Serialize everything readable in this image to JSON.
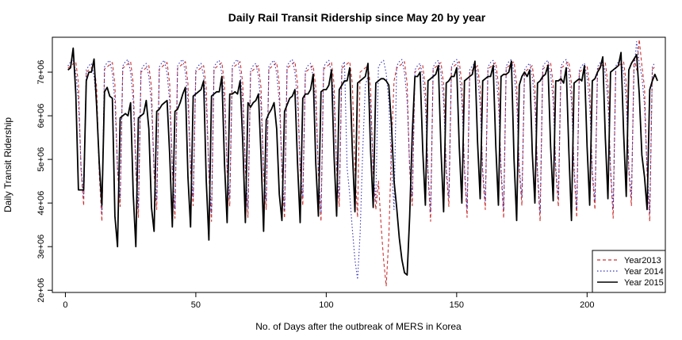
{
  "chart_data": {
    "type": "line",
    "title": "Daily Rail Transit Ridership since May 20 by year",
    "xlabel": "No. of Days after the outbreak of MERS in Korea",
    "ylabel": "Daily Transit Ridership",
    "xlim": [
      -5,
      230
    ],
    "ylim": [
      1950000,
      7800000
    ],
    "x_ticks": [
      0,
      50,
      100,
      150,
      200
    ],
    "x_tick_labels": [
      "0",
      "50",
      "100",
      "150",
      "200"
    ],
    "y_ticks": [
      2000000,
      3000000,
      4000000,
      5000000,
      6000000,
      7000000
    ],
    "y_tick_labels": [
      "2e+06",
      "3e+06",
      "4e+06",
      "5e+06",
      "6e+06",
      "7e+06"
    ],
    "grid": false,
    "legend_position": "bottom-right",
    "period_days": 7,
    "series": [
      {
        "name": "Year2013",
        "color": "#cc3333",
        "line_style": "dashed",
        "weekly_pattern": [
          7050000,
          7100000,
          7150000,
          7200000,
          6700000,
          4700000,
          3750000
        ],
        "start_day": 1,
        "end_day": 226,
        "anomalies": [
          {
            "x": 120,
            "y": 4500000
          },
          {
            "x": 121,
            "y": 3500000
          },
          {
            "x": 122,
            "y": 2700000
          },
          {
            "x": 123,
            "y": 2100000
          },
          {
            "x": 124,
            "y": 3200000
          },
          {
            "x": 125,
            "y": 5300000
          },
          {
            "x": 126,
            "y": 6800000
          },
          {
            "x": 218,
            "y": 7350000
          },
          {
            "x": 220,
            "y": 7750000
          }
        ]
      },
      {
        "name": "Year 2014",
        "color": "#3333bb",
        "line_style": "dotted",
        "weekly_pattern": [
          7100000,
          7200000,
          7250000,
          6950000,
          6300000,
          4800000,
          3950000
        ],
        "start_day": 1,
        "end_day": 226,
        "anomalies": [
          {
            "x": 108,
            "y": 4800000
          },
          {
            "x": 109,
            "y": 4200000
          },
          {
            "x": 110,
            "y": 3400000
          },
          {
            "x": 111,
            "y": 2700000
          },
          {
            "x": 112,
            "y": 2250000
          },
          {
            "x": 113,
            "y": 3300000
          },
          {
            "x": 114,
            "y": 5200000
          },
          {
            "x": 115,
            "y": 6700000
          },
          {
            "x": 219,
            "y": 7700000
          }
        ]
      },
      {
        "name": "Year 2015",
        "color": "#000000",
        "line_style": "solid",
        "points": [
          [
            1,
            7050000
          ],
          [
            2,
            7100000
          ],
          [
            3,
            7550000
          ],
          [
            4,
            6500000
          ],
          [
            5,
            4300000
          ],
          [
            6,
            4300000
          ],
          [
            7,
            4300000
          ],
          [
            8,
            6800000
          ],
          [
            9,
            7000000
          ],
          [
            10,
            7000000
          ],
          [
            11,
            7300000
          ],
          [
            12,
            6200000
          ],
          [
            13,
            4900000
          ],
          [
            14,
            3950000
          ],
          [
            15,
            6550000
          ],
          [
            16,
            6650000
          ],
          [
            17,
            6450000
          ],
          [
            18,
            6400000
          ],
          [
            19,
            3700000
          ],
          [
            20,
            3000000
          ],
          [
            21,
            5950000
          ],
          [
            22,
            6000000
          ],
          [
            23,
            6050000
          ],
          [
            24,
            6000000
          ],
          [
            25,
            6300000
          ],
          [
            26,
            4200000
          ],
          [
            27,
            3000000
          ],
          [
            28,
            5950000
          ],
          [
            29,
            6000000
          ],
          [
            30,
            6050000
          ],
          [
            31,
            6350000
          ],
          [
            32,
            5700000
          ],
          [
            33,
            3900000
          ],
          [
            34,
            3350000
          ],
          [
            35,
            6100000
          ],
          [
            36,
            6150000
          ],
          [
            37,
            6250000
          ],
          [
            38,
            6300000
          ],
          [
            39,
            6350000
          ],
          [
            40,
            5100000
          ],
          [
            41,
            3450000
          ],
          [
            42,
            6100000
          ],
          [
            43,
            6150000
          ],
          [
            44,
            6300000
          ],
          [
            45,
            6500000
          ],
          [
            46,
            6650000
          ],
          [
            47,
            4600000
          ],
          [
            48,
            3450000
          ],
          [
            49,
            6450000
          ],
          [
            50,
            6500000
          ],
          [
            51,
            6550000
          ],
          [
            52,
            6600000
          ],
          [
            53,
            6800000
          ],
          [
            54,
            4500000
          ],
          [
            55,
            3150000
          ],
          [
            56,
            6450000
          ],
          [
            57,
            6500000
          ],
          [
            58,
            6550000
          ],
          [
            59,
            6550000
          ],
          [
            60,
            6900000
          ],
          [
            61,
            4900000
          ],
          [
            62,
            3550000
          ],
          [
            63,
            6500000
          ],
          [
            64,
            6500000
          ],
          [
            65,
            6550000
          ],
          [
            66,
            6500000
          ],
          [
            67,
            6800000
          ],
          [
            68,
            5400000
          ],
          [
            69,
            3550000
          ],
          [
            70,
            6300000
          ],
          [
            71,
            6200000
          ],
          [
            72,
            6300000
          ],
          [
            73,
            6350000
          ],
          [
            74,
            6500000
          ],
          [
            75,
            5100000
          ],
          [
            76,
            3350000
          ],
          [
            77,
            5900000
          ],
          [
            78,
            6050000
          ],
          [
            79,
            6150000
          ],
          [
            80,
            6300000
          ],
          [
            81,
            5700000
          ],
          [
            82,
            4200000
          ],
          [
            83,
            3600000
          ],
          [
            84,
            6100000
          ],
          [
            85,
            6250000
          ],
          [
            86,
            6400000
          ],
          [
            87,
            6450000
          ],
          [
            88,
            6600000
          ],
          [
            89,
            4900000
          ],
          [
            90,
            3550000
          ],
          [
            91,
            6400000
          ],
          [
            92,
            6500000
          ],
          [
            93,
            6500000
          ],
          [
            94,
            6600000
          ],
          [
            95,
            6950000
          ],
          [
            96,
            4900000
          ],
          [
            97,
            3700000
          ],
          [
            98,
            6550000
          ],
          [
            99,
            6600000
          ],
          [
            100,
            6600000
          ],
          [
            101,
            6700000
          ],
          [
            102,
            7050000
          ],
          [
            103,
            5050000
          ],
          [
            104,
            3700000
          ],
          [
            105,
            6600000
          ],
          [
            106,
            6700000
          ],
          [
            107,
            6800000
          ],
          [
            108,
            6800000
          ],
          [
            109,
            7100000
          ],
          [
            110,
            5200000
          ],
          [
            111,
            3800000
          ],
          [
            112,
            6750000
          ],
          [
            113,
            6800000
          ],
          [
            114,
            6850000
          ],
          [
            115,
            6900000
          ],
          [
            116,
            7200000
          ],
          [
            117,
            5200000
          ],
          [
            118,
            3900000
          ],
          [
            119,
            6750000
          ],
          [
            120,
            6800000
          ],
          [
            121,
            6850000
          ],
          [
            122,
            6850000
          ],
          [
            123,
            6800000
          ],
          [
            124,
            6700000
          ],
          [
            125,
            5800000
          ],
          [
            126,
            4500000
          ],
          [
            127,
            3900000
          ],
          [
            128,
            3200000
          ],
          [
            129,
            2700000
          ],
          [
            130,
            2400000
          ],
          [
            131,
            2350000
          ],
          [
            132,
            3700000
          ],
          [
            133,
            5600000
          ],
          [
            134,
            6900000
          ],
          [
            135,
            6900000
          ],
          [
            136,
            7000000
          ],
          [
            137,
            5200000
          ],
          [
            138,
            3950000
          ],
          [
            139,
            6800000
          ],
          [
            140,
            6850000
          ],
          [
            141,
            6900000
          ],
          [
            142,
            6950000
          ],
          [
            143,
            7150000
          ],
          [
            144,
            5200000
          ],
          [
            145,
            3800000
          ],
          [
            146,
            6750000
          ],
          [
            147,
            6800000
          ],
          [
            148,
            6900000
          ],
          [
            149,
            6900000
          ],
          [
            150,
            7100000
          ],
          [
            151,
            5300000
          ],
          [
            152,
            4000000
          ],
          [
            153,
            6800000
          ],
          [
            154,
            6850000
          ],
          [
            155,
            6900000
          ],
          [
            156,
            6950000
          ],
          [
            157,
            7250000
          ],
          [
            158,
            5400000
          ],
          [
            159,
            4100000
          ],
          [
            160,
            6800000
          ],
          [
            161,
            6850000
          ],
          [
            162,
            6900000
          ],
          [
            163,
            6900000
          ],
          [
            164,
            7150000
          ],
          [
            165,
            5300000
          ],
          [
            166,
            3950000
          ],
          [
            167,
            6900000
          ],
          [
            168,
            6950000
          ],
          [
            169,
            6950000
          ],
          [
            170,
            7000000
          ],
          [
            171,
            7250000
          ],
          [
            172,
            5000000
          ],
          [
            173,
            3600000
          ],
          [
            174,
            6700000
          ],
          [
            175,
            6900000
          ],
          [
            176,
            7000000
          ],
          [
            177,
            6900000
          ],
          [
            178,
            7050000
          ],
          [
            179,
            5150000
          ],
          [
            180,
            4000000
          ],
          [
            181,
            6750000
          ],
          [
            182,
            6800000
          ],
          [
            183,
            6900000
          ],
          [
            184,
            6950000
          ],
          [
            185,
            7150000
          ],
          [
            186,
            5300000
          ],
          [
            187,
            4050000
          ],
          [
            188,
            6800000
          ],
          [
            189,
            6800000
          ],
          [
            190,
            6850000
          ],
          [
            191,
            6750000
          ],
          [
            192,
            7100000
          ],
          [
            193,
            5200000
          ],
          [
            194,
            3600000
          ],
          [
            195,
            6750000
          ],
          [
            196,
            6800000
          ],
          [
            197,
            6850000
          ],
          [
            198,
            6800000
          ],
          [
            199,
            7150000
          ],
          [
            200,
            5300000
          ],
          [
            201,
            3950000
          ],
          [
            202,
            6800000
          ],
          [
            203,
            6850000
          ],
          [
            204,
            7000000
          ],
          [
            205,
            7100000
          ],
          [
            206,
            7350000
          ],
          [
            207,
            5500000
          ],
          [
            208,
            4100000
          ],
          [
            209,
            7000000
          ],
          [
            210,
            7050000
          ],
          [
            211,
            7100000
          ],
          [
            212,
            7150000
          ],
          [
            213,
            7450000
          ],
          [
            214,
            5600000
          ],
          [
            215,
            4150000
          ],
          [
            216,
            7050000
          ],
          [
            217,
            7200000
          ],
          [
            218,
            7300000
          ],
          [
            219,
            7400000
          ],
          [
            220,
            6500000
          ],
          [
            221,
            5100000
          ],
          [
            222,
            4600000
          ],
          [
            223,
            3850000
          ],
          [
            224,
            6600000
          ],
          [
            225,
            6800000
          ],
          [
            226,
            6950000
          ],
          [
            227,
            6800000
          ]
        ]
      }
    ]
  }
}
